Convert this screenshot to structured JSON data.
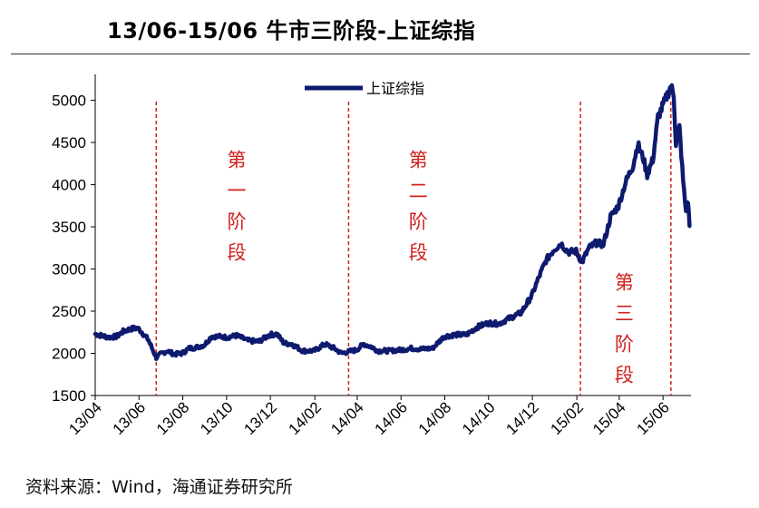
{
  "header": {
    "title": "13/06-15/06 牛市三阶段-上证综指"
  },
  "footer": {
    "source": "资料来源：Wind，海通证券研究所"
  },
  "chart_data": {
    "type": "line",
    "title": "13/06-15/06 牛市三阶段-上证综指",
    "xlabel": "",
    "ylabel": "",
    "ylim": [
      1500,
      5200
    ],
    "yticks": [
      1500,
      2000,
      2500,
      3000,
      3500,
      4000,
      4500,
      5000
    ],
    "xlim": [
      "2013-04-01",
      "2015-07-10"
    ],
    "xticks": [
      {
        "label": "13/04",
        "date": "2013-04-01"
      },
      {
        "label": "13/06",
        "date": "2013-06-01"
      },
      {
        "label": "13/08",
        "date": "2013-08-01"
      },
      {
        "label": "13/10",
        "date": "2013-10-01"
      },
      {
        "label": "13/12",
        "date": "2013-12-01"
      },
      {
        "label": "14/02",
        "date": "2014-02-01"
      },
      {
        "label": "14/04",
        "date": "2014-04-01"
      },
      {
        "label": "14/06",
        "date": "2014-06-01"
      },
      {
        "label": "14/08",
        "date": "2014-08-01"
      },
      {
        "label": "14/10",
        "date": "2014-10-01"
      },
      {
        "label": "14/12",
        "date": "2014-12-01"
      },
      {
        "label": "15/02",
        "date": "2015-02-01"
      },
      {
        "label": "15/04",
        "date": "2015-04-01"
      },
      {
        "label": "15/06",
        "date": "2015-06-01"
      }
    ],
    "legend": {
      "position": "top-center",
      "entries": [
        "上证综指"
      ]
    },
    "grid": false,
    "series": [
      {
        "name": "上证综指",
        "color": "#0e1a6e",
        "points": [
          [
            "2013-04-01",
            2230
          ],
          [
            "2013-04-10",
            2210
          ],
          [
            "2013-04-20",
            2190
          ],
          [
            "2013-05-01",
            2200
          ],
          [
            "2013-05-10",
            2260
          ],
          [
            "2013-05-20",
            2290
          ],
          [
            "2013-05-30",
            2300
          ],
          [
            "2013-06-05",
            2250
          ],
          [
            "2013-06-14",
            2160
          ],
          [
            "2013-06-25",
            1950
          ],
          [
            "2013-07-01",
            1990
          ],
          [
            "2013-07-10",
            2030
          ],
          [
            "2013-07-20",
            1990
          ],
          [
            "2013-07-31",
            2000
          ],
          [
            "2013-08-10",
            2060
          ],
          [
            "2013-08-20",
            2070
          ],
          [
            "2013-08-31",
            2100
          ],
          [
            "2013-09-10",
            2200
          ],
          [
            "2013-09-20",
            2200
          ],
          [
            "2013-10-01",
            2190
          ],
          [
            "2013-10-15",
            2210
          ],
          [
            "2013-10-31",
            2150
          ],
          [
            "2013-11-15",
            2140
          ],
          [
            "2013-11-30",
            2220
          ],
          [
            "2013-12-10",
            2230
          ],
          [
            "2013-12-20",
            2120
          ],
          [
            "2013-12-31",
            2110
          ],
          [
            "2014-01-15",
            2030
          ],
          [
            "2014-01-31",
            2030
          ],
          [
            "2014-02-15",
            2110
          ],
          [
            "2014-02-28",
            2060
          ],
          [
            "2014-03-10",
            2000
          ],
          [
            "2014-03-20",
            2020
          ],
          [
            "2014-03-31",
            2040
          ],
          [
            "2014-04-10",
            2110
          ],
          [
            "2014-04-20",
            2080
          ],
          [
            "2014-04-30",
            2030
          ],
          [
            "2014-05-15",
            2030
          ],
          [
            "2014-05-31",
            2040
          ],
          [
            "2014-06-15",
            2060
          ],
          [
            "2014-06-30",
            2050
          ],
          [
            "2014-07-15",
            2060
          ],
          [
            "2014-07-31",
            2200
          ],
          [
            "2014-08-15",
            2220
          ],
          [
            "2014-08-31",
            2220
          ],
          [
            "2014-09-15",
            2310
          ],
          [
            "2014-09-30",
            2360
          ],
          [
            "2014-10-15",
            2350
          ],
          [
            "2014-10-31",
            2420
          ],
          [
            "2014-11-15",
            2480
          ],
          [
            "2014-11-30",
            2680
          ],
          [
            "2014-12-10",
            2900
          ],
          [
            "2014-12-20",
            3100
          ],
          [
            "2014-12-31",
            3230
          ],
          [
            "2015-01-10",
            3300
          ],
          [
            "2015-01-20",
            3200
          ],
          [
            "2015-01-31",
            3210
          ],
          [
            "2015-02-08",
            3080
          ],
          [
            "2015-02-18",
            3250
          ],
          [
            "2015-02-28",
            3310
          ],
          [
            "2015-03-10",
            3290
          ],
          [
            "2015-03-20",
            3620
          ],
          [
            "2015-03-31",
            3750
          ],
          [
            "2015-04-10",
            4030
          ],
          [
            "2015-04-20",
            4220
          ],
          [
            "2015-04-27",
            4480
          ],
          [
            "2015-05-05",
            4300
          ],
          [
            "2015-05-10",
            4120
          ],
          [
            "2015-05-18",
            4300
          ],
          [
            "2015-05-25",
            4800
          ],
          [
            "2015-06-05",
            5020
          ],
          [
            "2015-06-12",
            5170
          ],
          [
            "2015-06-16",
            5060
          ],
          [
            "2015-06-19",
            4480
          ],
          [
            "2015-06-24",
            4680
          ],
          [
            "2015-06-29",
            4050
          ],
          [
            "2015-07-03",
            3680
          ],
          [
            "2015-07-06",
            3800
          ],
          [
            "2015-07-08",
            3510
          ]
        ]
      }
    ],
    "markers": [
      {
        "date": "2013-06-25",
        "color": "#d0211c",
        "style": "dashed"
      },
      {
        "date": "2014-03-20",
        "color": "#d0211c",
        "style": "dashed"
      },
      {
        "date": "2015-02-06",
        "color": "#d0211c",
        "style": "dashed"
      },
      {
        "date": "2015-06-12",
        "color": "#d0211c",
        "style": "dashed"
      }
    ],
    "annotations": [
      {
        "text": "第一阶段",
        "date": "2013-10-15",
        "value": 4450
      },
      {
        "text": "第二阶段",
        "date": "2014-06-25",
        "value": 4450
      },
      {
        "text": "第三阶段",
        "date": "2015-04-08",
        "value": 3000
      }
    ]
  }
}
